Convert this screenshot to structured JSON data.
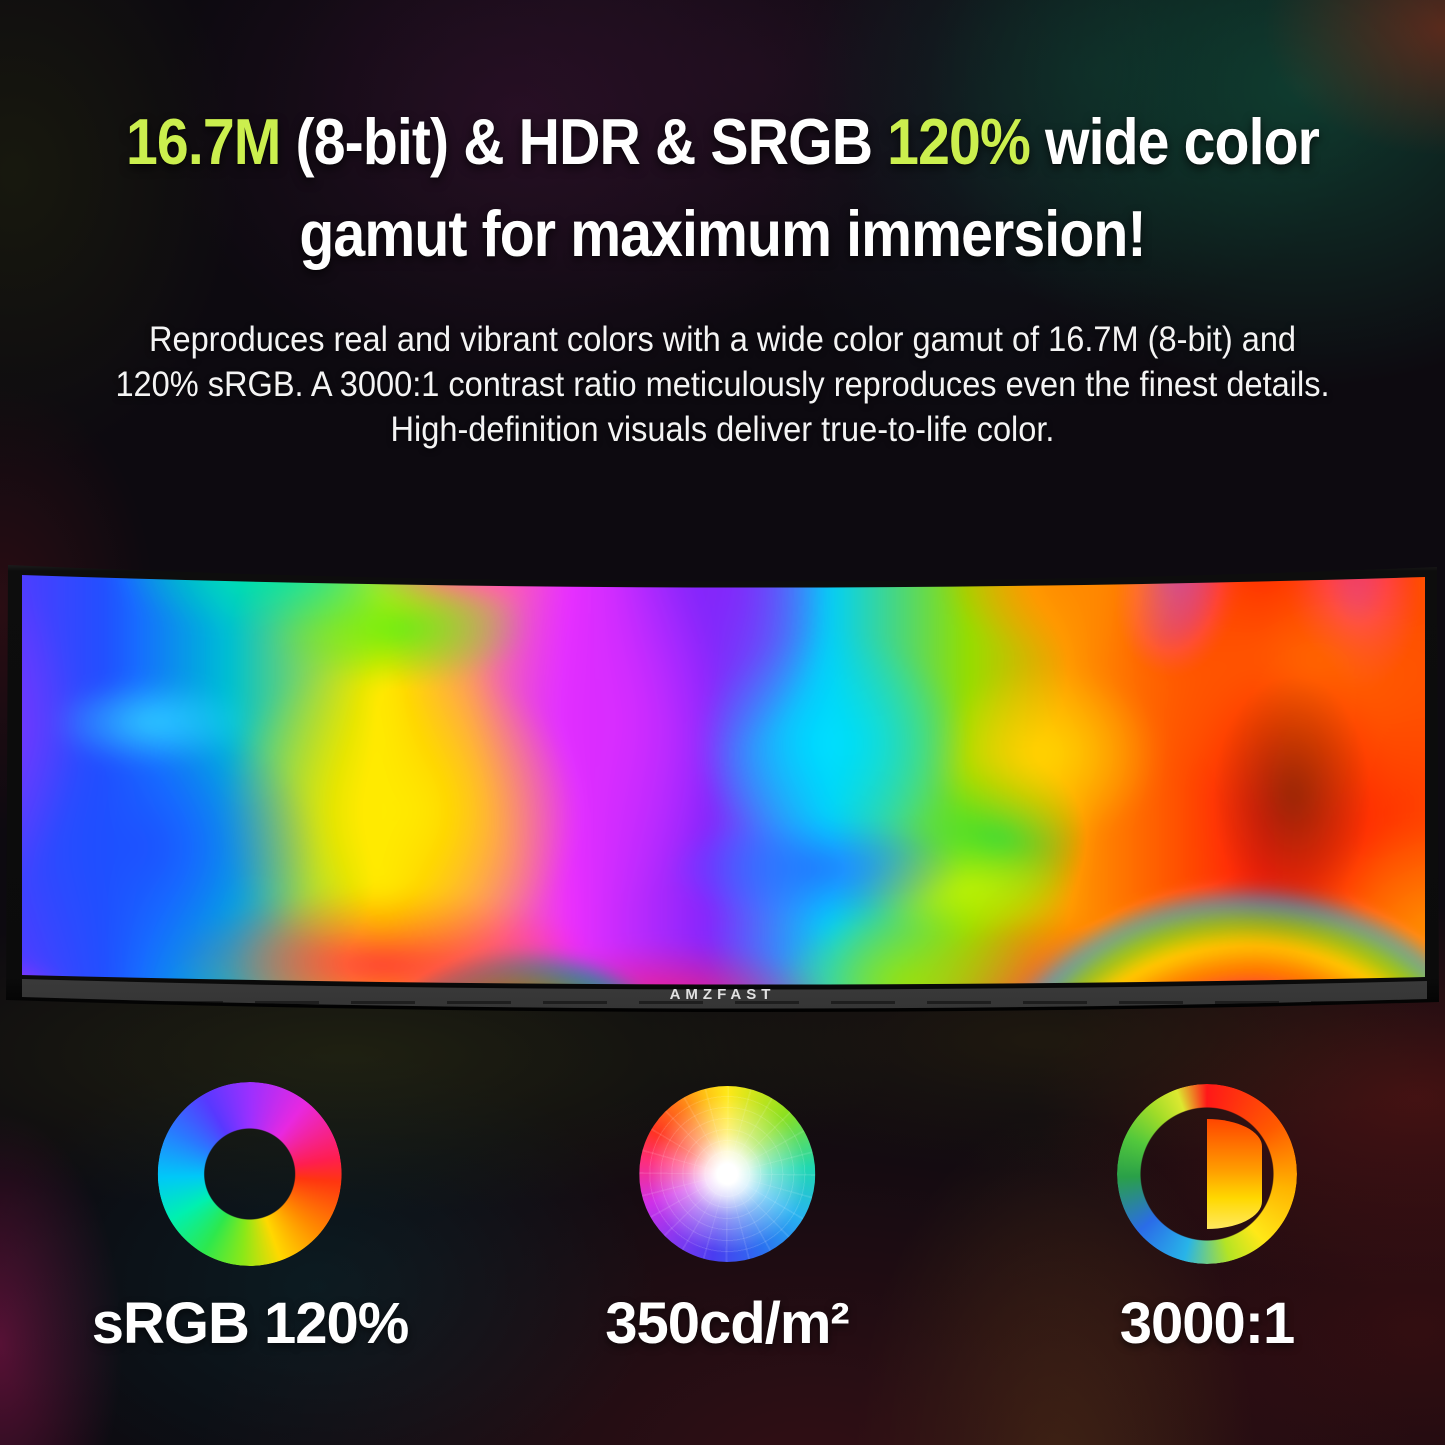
{
  "accent_color": "#cbef4e",
  "headline": {
    "seg1": "16.7M",
    "seg2": " (8-bit) & HDR & SRGB ",
    "seg3": "120%",
    "seg4": " wide color",
    "line2": "gamut for maximum immersion!"
  },
  "body": {
    "line1": "Reproduces real and vibrant colors with a wide color gamut of 16.7M (8-bit) and",
    "line2": "120% sRGB. A 3000:1 contrast ratio meticulously reproduces even the finest details.",
    "line3": "High-definition visuals deliver true-to-life color."
  },
  "monitor": {
    "brand": "AMZFAST"
  },
  "features": [
    {
      "icon": "srgb-hue-ring",
      "label": "sRGB 120%"
    },
    {
      "icon": "color-wheel",
      "label": "350cd/m²"
    },
    {
      "icon": "contrast-ratio",
      "label": "3000:1"
    }
  ]
}
